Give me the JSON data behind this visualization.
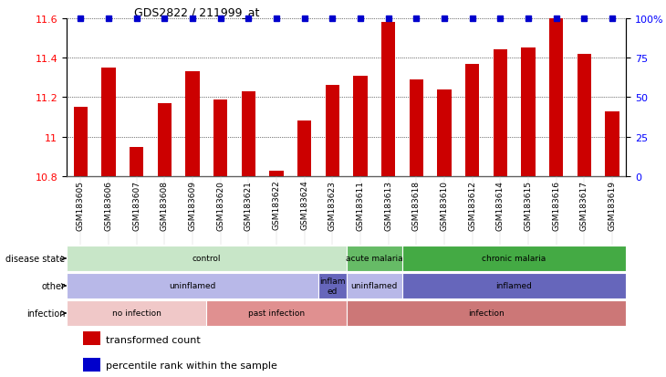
{
  "title": "GDS2822 / 211999_at",
  "samples": [
    "GSM183605",
    "GSM183606",
    "GSM183607",
    "GSM183608",
    "GSM183609",
    "GSM183620",
    "GSM183621",
    "GSM183622",
    "GSM183624",
    "GSM183623",
    "GSM183611",
    "GSM183613",
    "GSM183618",
    "GSM183610",
    "GSM183612",
    "GSM183614",
    "GSM183615",
    "GSM183616",
    "GSM183617",
    "GSM183619"
  ],
  "bar_values": [
    11.15,
    11.35,
    10.95,
    11.17,
    11.33,
    11.19,
    11.23,
    10.83,
    11.08,
    11.26,
    11.31,
    11.58,
    11.29,
    11.24,
    11.37,
    11.44,
    11.45,
    11.6,
    11.42,
    11.13
  ],
  "bar_color": "#cc0000",
  "dot_color": "#0000cc",
  "ymin": 10.8,
  "ymax": 11.6,
  "yticks": [
    10.8,
    11.0,
    11.2,
    11.4,
    11.6
  ],
  "ytick_labels": [
    "10.8",
    "11",
    "11.2",
    "11.4",
    "11.6"
  ],
  "right_yticks": [
    0,
    25,
    50,
    75,
    100
  ],
  "right_ytick_labels": [
    "0",
    "25",
    "50",
    "75",
    "100%"
  ],
  "annotation_rows": [
    {
      "label": "disease state",
      "segments": [
        {
          "text": "control",
          "start": 0,
          "end": 10,
          "color": "#c8e6c8"
        },
        {
          "text": "acute malaria",
          "start": 10,
          "end": 12,
          "color": "#66bb66"
        },
        {
          "text": "chronic malaria",
          "start": 12,
          "end": 20,
          "color": "#44aa44"
        }
      ]
    },
    {
      "label": "other",
      "segments": [
        {
          "text": "uninflamed",
          "start": 0,
          "end": 9,
          "color": "#b8b8e8"
        },
        {
          "text": "inflam\ned",
          "start": 9,
          "end": 10,
          "color": "#6666bb"
        },
        {
          "text": "uninflamed",
          "start": 10,
          "end": 12,
          "color": "#b8b8e8"
        },
        {
          "text": "inflamed",
          "start": 12,
          "end": 20,
          "color": "#6666bb"
        }
      ]
    },
    {
      "label": "infection",
      "segments": [
        {
          "text": "no infection",
          "start": 0,
          "end": 5,
          "color": "#f0c8c8"
        },
        {
          "text": "past infection",
          "start": 5,
          "end": 10,
          "color": "#e09090"
        },
        {
          "text": "infection",
          "start": 10,
          "end": 20,
          "color": "#cc7777"
        }
      ]
    }
  ],
  "legend_items": [
    {
      "color": "#cc0000",
      "label": "transformed count"
    },
    {
      "color": "#0000cc",
      "label": "percentile rank within the sample"
    }
  ]
}
